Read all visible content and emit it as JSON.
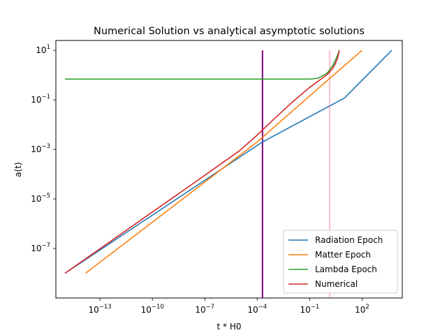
{
  "chart_data": {
    "type": "line",
    "title": "Numerical Solution vs analytical asymptotic solutions",
    "xlabel": "t * H0",
    "ylabel": "a(t)",
    "xscale": "log",
    "yscale": "log",
    "xlim": [
      3e-16,
      20000.0
    ],
    "ylim": [
      1e-09,
      25
    ],
    "grid": false,
    "legend_position": "bottom-right",
    "x_ticks": [
      {
        "value": 1e-13,
        "base": "10",
        "exp": "−13"
      },
      {
        "value": 1e-10,
        "base": "10",
        "exp": "−10"
      },
      {
        "value": 1e-07,
        "base": "10",
        "exp": "−7"
      },
      {
        "value": 0.0001,
        "base": "10",
        "exp": "−4"
      },
      {
        "value": 0.1,
        "base": "10",
        "exp": "−1"
      },
      {
        "value": 100.0,
        "base": "10",
        "exp": "2"
      }
    ],
    "y_ticks": [
      {
        "value": 1e-07,
        "base": "10",
        "exp": "−7"
      },
      {
        "value": 1e-05,
        "base": "10",
        "exp": "−5"
      },
      {
        "value": 0.001,
        "base": "10",
        "exp": "−3"
      },
      {
        "value": 0.1,
        "base": "10",
        "exp": "−1"
      },
      {
        "value": 10,
        "base": "10",
        "exp": "1"
      }
    ],
    "series": [
      {
        "name": "Radiation Epoch",
        "color": "#1f77b4",
        "points": [
          [
            1e-15,
            1e-08
          ],
          [
            0.0002,
            0.002
          ],
          [
            10.0,
            0.12
          ],
          [
            5000.0,
            10
          ]
        ]
      },
      {
        "name": "Matter Epoch",
        "color": "#ff7f0e",
        "points": [
          [
            1.5e-14,
            1e-08
          ],
          [
            0.0001,
            0.002
          ],
          [
            1,
            0.6
          ],
          [
            100.0,
            10
          ]
        ]
      },
      {
        "name": "Lambda Epoch",
        "color": "#2ca02c",
        "points": [
          [
            1e-15,
            0.69
          ],
          [
            0.1,
            0.69
          ],
          [
            0.3,
            0.75
          ],
          [
            1,
            1.2
          ],
          [
            2,
            2.3
          ],
          [
            3,
            4
          ],
          [
            4,
            6.5
          ],
          [
            5,
            10
          ]
        ]
      },
      {
        "name": "Numerical",
        "color": "#d62728",
        "points": [
          [
            1e-15,
            1e-08
          ],
          [
            1e-07,
            9e-05
          ],
          [
            1e-05,
            0.0009
          ],
          [
            0.0001,
            0.0038
          ],
          [
            0.001,
            0.018
          ],
          [
            0.01,
            0.08
          ],
          [
            0.1,
            0.32
          ],
          [
            1,
            1.05
          ],
          [
            2,
            1.8
          ],
          [
            3,
            3
          ],
          [
            4,
            5
          ],
          [
            5,
            10
          ]
        ]
      }
    ],
    "vlines": [
      {
        "x": 0.0002,
        "color": "#800080",
        "ymin": 1e-09,
        "ymax": 10
      },
      {
        "x": 1.4,
        "color": "#ffc0cb",
        "ymin": 1e-09,
        "ymax": 10
      }
    ]
  }
}
